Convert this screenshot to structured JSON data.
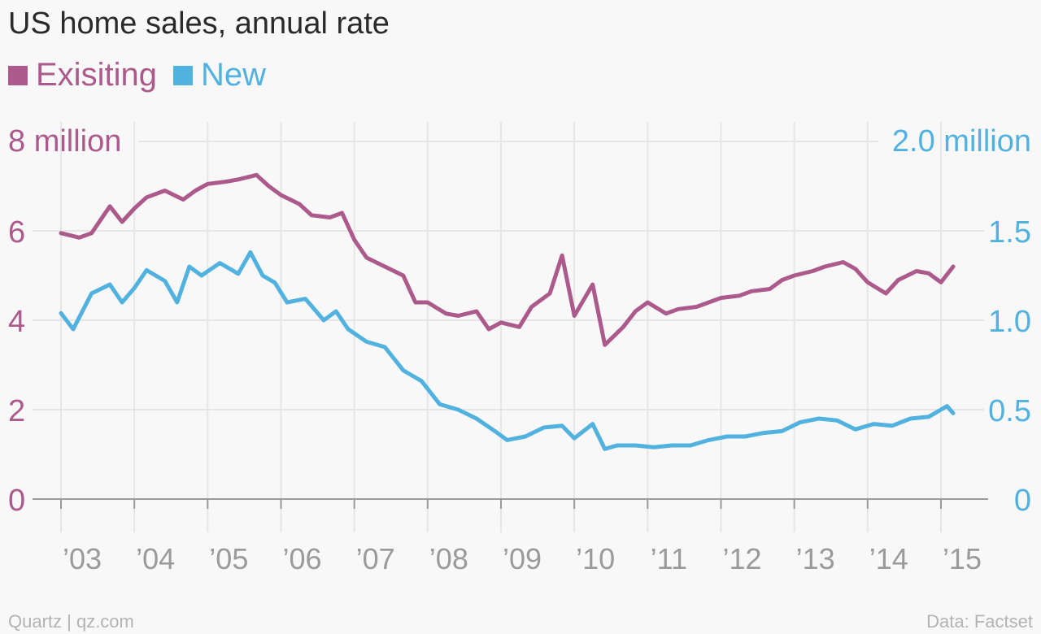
{
  "title": "US home sales, annual rate",
  "colors": {
    "existing": "#ac5a8c",
    "new": "#51b2e0",
    "axis_x": "#9a9a9a",
    "grid": "#e6e6e6"
  },
  "footer": {
    "source_left": "Quartz | qz.com",
    "source_right": "Data: Factset"
  },
  "chart_data": {
    "type": "line",
    "title": "US home sales, annual rate",
    "legend": [
      {
        "name": "Exisiting",
        "color": "#ac5a8c"
      },
      {
        "name": "New",
        "color": "#51b2e0"
      }
    ],
    "legend_placement": "top-left",
    "grid": true,
    "x_ticks": [
      "’03",
      "’04",
      "’05",
      "’06",
      "’07",
      "’08",
      "’09",
      "’10",
      "’11",
      "’12",
      "’13",
      "’14",
      "’15"
    ],
    "x_range": [
      "2003-01",
      "2015-04"
    ],
    "y_left": {
      "unit_label": "8 million",
      "ticks": [
        "0",
        "2",
        "4",
        "6"
      ],
      "range": [
        0,
        8
      ]
    },
    "y_right": {
      "unit_label": "2.0 million",
      "ticks": [
        "0",
        "0.5",
        "1.0",
        "1.5"
      ],
      "range": [
        0,
        2.0
      ]
    },
    "series": [
      {
        "name": "Exisiting",
        "axis": "left",
        "x": [
          "2003-01",
          "2003-04",
          "2003-06",
          "2003-09",
          "2003-11",
          "2004-01",
          "2004-03",
          "2004-06",
          "2004-09",
          "2004-11",
          "2005-01",
          "2005-04",
          "2005-06",
          "2005-09",
          "2005-11",
          "2006-01",
          "2006-04",
          "2006-06",
          "2006-09",
          "2006-11",
          "2007-01",
          "2007-03",
          "2007-06",
          "2007-09",
          "2007-11",
          "2008-01",
          "2008-04",
          "2008-06",
          "2008-09",
          "2008-11",
          "2009-01",
          "2009-04",
          "2009-06",
          "2009-09",
          "2009-11",
          "2010-01",
          "2010-04",
          "2010-06",
          "2010-09",
          "2010-11",
          "2011-01",
          "2011-04",
          "2011-06",
          "2011-09",
          "2011-11",
          "2012-01",
          "2012-04",
          "2012-06",
          "2012-09",
          "2012-11",
          "2013-01",
          "2013-04",
          "2013-06",
          "2013-09",
          "2013-11",
          "2014-01",
          "2014-04",
          "2014-06",
          "2014-09",
          "2014-11",
          "2015-01",
          "2015-03"
        ],
        "values": [
          5.95,
          5.85,
          5.95,
          6.55,
          6.2,
          6.5,
          6.75,
          6.9,
          6.7,
          6.9,
          7.05,
          7.1,
          7.15,
          7.25,
          7.0,
          6.8,
          6.6,
          6.35,
          6.3,
          6.4,
          5.8,
          5.4,
          5.2,
          5.0,
          4.4,
          4.4,
          4.15,
          4.1,
          4.2,
          3.8,
          3.95,
          3.85,
          4.3,
          4.6,
          5.45,
          4.1,
          4.8,
          3.45,
          3.85,
          4.2,
          4.4,
          4.15,
          4.25,
          4.3,
          4.4,
          4.5,
          4.55,
          4.65,
          4.7,
          4.9,
          5.0,
          5.1,
          5.2,
          5.3,
          5.15,
          4.85,
          4.6,
          4.9,
          5.1,
          5.05,
          4.85,
          5.2
        ]
      },
      {
        "name": "New",
        "axis": "right",
        "x": [
          "2003-01",
          "2003-03",
          "2003-06",
          "2003-09",
          "2003-11",
          "2004-01",
          "2004-03",
          "2004-06",
          "2004-08",
          "2004-10",
          "2004-12",
          "2005-03",
          "2005-06",
          "2005-08",
          "2005-10",
          "2005-12",
          "2006-02",
          "2006-05",
          "2006-08",
          "2006-10",
          "2006-12",
          "2007-03",
          "2007-06",
          "2007-09",
          "2007-12",
          "2008-03",
          "2008-06",
          "2008-09",
          "2008-12",
          "2009-02",
          "2009-05",
          "2009-08",
          "2009-11",
          "2010-01",
          "2010-04",
          "2010-06",
          "2010-08",
          "2010-11",
          "2011-02",
          "2011-05",
          "2011-08",
          "2011-11",
          "2012-02",
          "2012-05",
          "2012-08",
          "2012-11",
          "2013-02",
          "2013-05",
          "2013-08",
          "2013-11",
          "2014-02",
          "2014-05",
          "2014-08",
          "2014-11",
          "2015-02",
          "2015-03"
        ],
        "values": [
          1.04,
          0.95,
          1.15,
          1.2,
          1.1,
          1.18,
          1.28,
          1.22,
          1.1,
          1.3,
          1.25,
          1.32,
          1.26,
          1.38,
          1.25,
          1.21,
          1.1,
          1.12,
          1.0,
          1.05,
          0.95,
          0.88,
          0.85,
          0.72,
          0.66,
          0.53,
          0.5,
          0.45,
          0.38,
          0.33,
          0.35,
          0.4,
          0.41,
          0.34,
          0.42,
          0.28,
          0.3,
          0.3,
          0.29,
          0.3,
          0.3,
          0.33,
          0.35,
          0.35,
          0.37,
          0.38,
          0.43,
          0.45,
          0.44,
          0.39,
          0.42,
          0.41,
          0.45,
          0.46,
          0.52,
          0.48
        ]
      }
    ]
  }
}
